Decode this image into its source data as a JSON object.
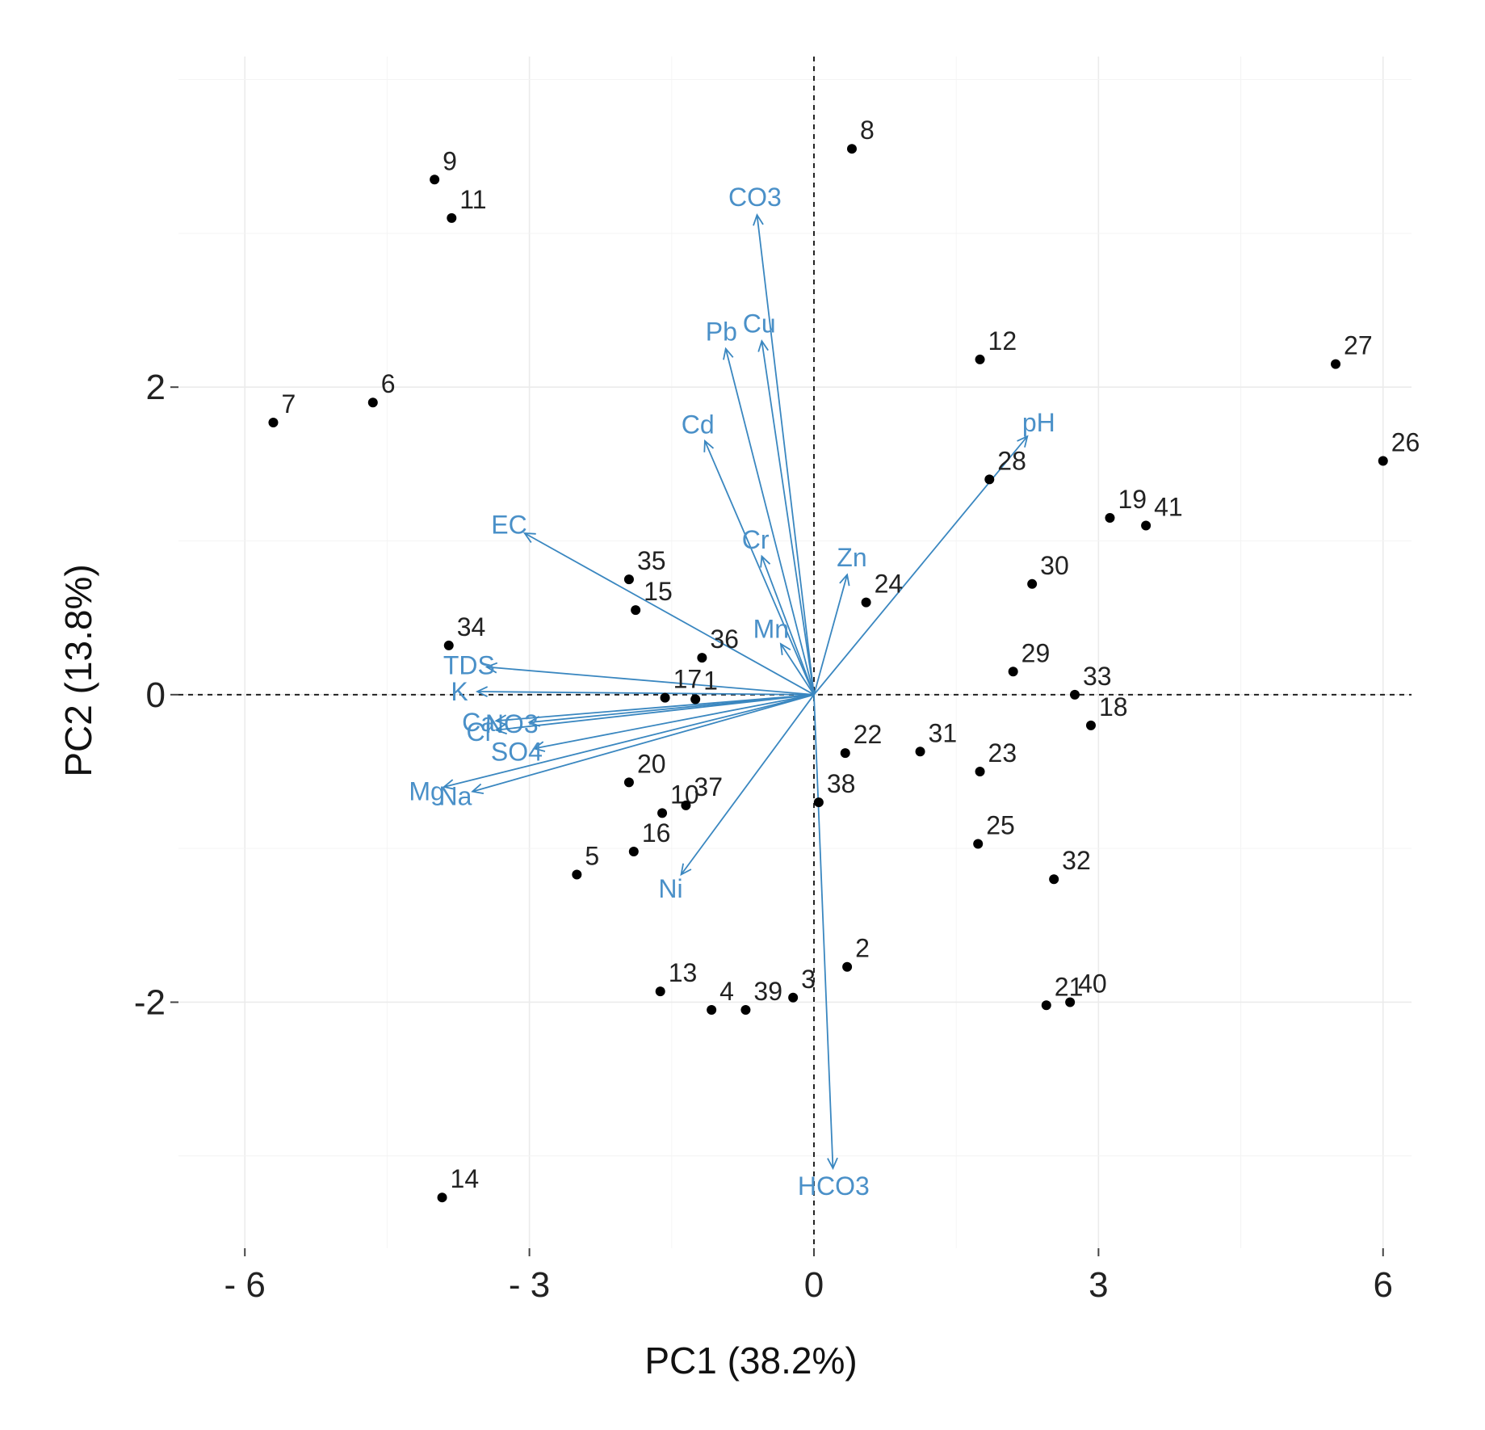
{
  "chart_data": {
    "type": "scatter",
    "subtype": "pca-biplot",
    "title": "",
    "xlabel": "PC1 (38.2%)",
    "ylabel": "PC2 (13.8%)",
    "xlim": [
      -6.7,
      6.3
    ],
    "ylim": [
      -3.6,
      4.15
    ],
    "xticks": [
      -6,
      -3,
      0,
      3,
      6
    ],
    "xtick_labels": [
      "- 6",
      "- 3",
      "0",
      "3",
      "6"
    ],
    "yticks": [
      -2,
      0,
      2
    ],
    "ytick_labels": [
      "-2",
      "0",
      "2"
    ],
    "grid": true,
    "zero_lines": "dashed",
    "point_color": "#000000",
    "arrow_color": "#3a87c0",
    "arrow_label_color": "#4a90c8",
    "points": [
      {
        "label": "1",
        "x": -1.25,
        "y": -0.03
      },
      {
        "label": "2",
        "x": 0.35,
        "y": -1.77
      },
      {
        "label": "3",
        "x": -0.22,
        "y": -1.97
      },
      {
        "label": "4",
        "x": -1.08,
        "y": -2.05
      },
      {
        "label": "5",
        "x": -2.5,
        "y": -1.17
      },
      {
        "label": "6",
        "x": -4.65,
        "y": 1.9
      },
      {
        "label": "7",
        "x": -5.7,
        "y": 1.77
      },
      {
        "label": "8",
        "x": 0.4,
        "y": 3.55
      },
      {
        "label": "9",
        "x": -4.0,
        "y": 3.35
      },
      {
        "label": "10",
        "x": -1.6,
        "y": -0.77
      },
      {
        "label": "11",
        "x": -3.82,
        "y": 3.1
      },
      {
        "label": "12",
        "x": 1.75,
        "y": 2.18
      },
      {
        "label": "13",
        "x": -1.62,
        "y": -1.93
      },
      {
        "label": "14",
        "x": -3.92,
        "y": -3.27
      },
      {
        "label": "15",
        "x": -1.88,
        "y": 0.55
      },
      {
        "label": "16",
        "x": -1.9,
        "y": -1.02
      },
      {
        "label": "17",
        "x": -1.57,
        "y": -0.02
      },
      {
        "label": "18",
        "x": 2.92,
        "y": -0.2
      },
      {
        "label": "19",
        "x": 3.12,
        "y": 1.15
      },
      {
        "label": "20",
        "x": -1.95,
        "y": -0.57
      },
      {
        "label": "21",
        "x": 2.45,
        "y": -2.02
      },
      {
        "label": "22",
        "x": 0.33,
        "y": -0.38
      },
      {
        "label": "23",
        "x": 1.75,
        "y": -0.5
      },
      {
        "label": "24",
        "x": 0.55,
        "y": 0.6
      },
      {
        "label": "25",
        "x": 1.73,
        "y": -0.97
      },
      {
        "label": "26",
        "x": 6.0,
        "y": 1.52
      },
      {
        "label": "27",
        "x": 5.5,
        "y": 2.15
      },
      {
        "label": "28",
        "x": 1.85,
        "y": 1.4
      },
      {
        "label": "29",
        "x": 2.1,
        "y": 0.15
      },
      {
        "label": "30",
        "x": 2.3,
        "y": 0.72
      },
      {
        "label": "31",
        "x": 1.12,
        "y": -0.37
      },
      {
        "label": "32",
        "x": 2.53,
        "y": -1.2
      },
      {
        "label": "33",
        "x": 2.75,
        "y": 0.0
      },
      {
        "label": "34",
        "x": -3.85,
        "y": 0.32
      },
      {
        "label": "35",
        "x": -1.95,
        "y": 0.75
      },
      {
        "label": "36",
        "x": -1.18,
        "y": 0.24
      },
      {
        "label": "37",
        "x": -1.35,
        "y": -0.72
      },
      {
        "label": "38",
        "x": 0.05,
        "y": -0.7
      },
      {
        "label": "39",
        "x": -0.72,
        "y": -2.05
      },
      {
        "label": "40",
        "x": 2.7,
        "y": -2.0
      },
      {
        "label": "41",
        "x": 3.5,
        "y": 1.1
      }
    ],
    "loadings": [
      {
        "label": "CO3",
        "x": -0.6,
        "y": 3.12
      },
      {
        "label": "Cu",
        "x": -0.55,
        "y": 2.3
      },
      {
        "label": "Pb",
        "x": -0.93,
        "y": 2.25
      },
      {
        "label": "Cd",
        "x": -1.15,
        "y": 1.65
      },
      {
        "label": "Cr",
        "x": -0.55,
        "y": 0.9
      },
      {
        "label": "Mn",
        "x": -0.35,
        "y": 0.33
      },
      {
        "label": "Zn",
        "x": 0.35,
        "y": 0.78
      },
      {
        "label": "pH",
        "x": 2.25,
        "y": 1.68
      },
      {
        "label": "EC",
        "x": -3.05,
        "y": 1.05
      },
      {
        "label": "TDS",
        "x": -3.45,
        "y": 0.18
      },
      {
        "label": "K",
        "x": -3.55,
        "y": 0.02
      },
      {
        "label": "Ca",
        "x": -3.35,
        "y": -0.17
      },
      {
        "label": "NO3",
        "x": -3.0,
        "y": -0.18
      },
      {
        "label": "Cl",
        "x": -3.35,
        "y": -0.23
      },
      {
        "label": "SO4",
        "x": -2.95,
        "y": -0.35
      },
      {
        "label": "Mg",
        "x": -3.9,
        "y": -0.6
      },
      {
        "label": "Na",
        "x": -3.6,
        "y": -0.63
      },
      {
        "label": "Ni",
        "x": -1.4,
        "y": -1.17
      },
      {
        "label": "HCO3",
        "x": 0.2,
        "y": -3.08
      }
    ]
  }
}
